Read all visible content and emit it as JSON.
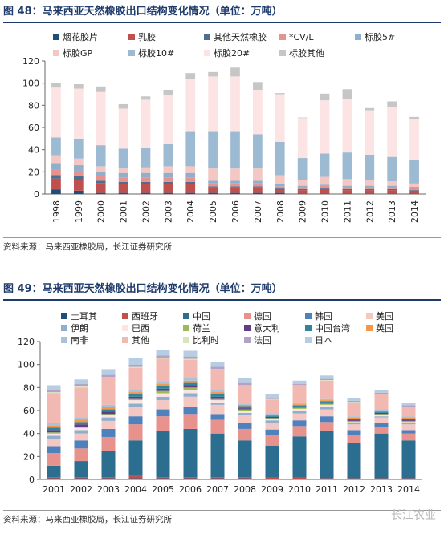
{
  "figures": [
    {
      "title": "图 48：马来西亚天然橡胶出口结构变化情况（单位：万吨）",
      "source": "资料来源：马来西亚橡胶局，长江证券研究所"
    },
    {
      "title": "图 49：马来西亚天然橡胶出口结构变化情况（单位：万吨）",
      "source": "资料来源：马来西亚橡胶局，长江证券研究所"
    }
  ],
  "watermark": "长江农业",
  "chart_data": [
    {
      "type": "bar",
      "stacked": true,
      "categories": [
        "1998",
        "1999",
        "2000",
        "2001",
        "2002",
        "2003",
        "2004",
        "2005",
        "2006",
        "2007",
        "2008",
        "2009",
        "2010",
        "2011",
        "2012",
        "2013",
        "2014"
      ],
      "ylim": [
        0,
        120
      ],
      "yticks": [
        0,
        20,
        40,
        60,
        80,
        100,
        120
      ],
      "grid": false,
      "legend": "top",
      "series": [
        {
          "name": "烟花胶片",
          "color": "#1f4e79",
          "values": [
            4,
            3,
            1,
            1,
            1,
            1,
            1,
            1,
            1,
            1,
            1,
            0.5,
            0.5,
            0.5,
            0.5,
            0.5,
            0.5
          ]
        },
        {
          "name": "乳胶",
          "color": "#c0504d",
          "values": [
            10,
            10,
            9,
            8,
            8,
            8,
            8,
            5,
            5,
            5,
            3,
            3,
            4,
            3,
            3,
            3,
            2
          ]
        },
        {
          "name": "其他天然橡胶",
          "color": "#4f6d8f",
          "values": [
            3,
            3,
            2,
            2,
            2,
            2,
            2,
            1,
            1,
            1,
            1,
            1,
            1,
            1,
            1,
            1,
            1
          ]
        },
        {
          "name": "*CV/L",
          "color": "#e8928e",
          "values": [
            5,
            5,
            4,
            4,
            4,
            4,
            4,
            3,
            3,
            3,
            2,
            2,
            2,
            2,
            2,
            2,
            2
          ]
        },
        {
          "name": "标胶5#",
          "color": "#8fb0cc",
          "values": [
            6,
            5,
            4,
            4,
            4,
            4,
            4,
            2,
            2,
            2,
            2,
            1,
            1,
            1,
            1,
            1,
            1
          ]
        },
        {
          "name": "标胶GP",
          "color": "#f4c7c3",
          "values": [
            7,
            6,
            5,
            4,
            5,
            6,
            6,
            11,
            11,
            11,
            8,
            5,
            7,
            6,
            5,
            4,
            3
          ]
        },
        {
          "name": "标胶10#",
          "color": "#9dbad3",
          "values": [
            16,
            18,
            19,
            18,
            18,
            20,
            31,
            33,
            33,
            31,
            30,
            20,
            21,
            24,
            23,
            22,
            21
          ]
        },
        {
          "name": "标胶20#",
          "color": "#fce4e4",
          "values": [
            45,
            45,
            48,
            36,
            43,
            44,
            48,
            50,
            50,
            40,
            43,
            36,
            48,
            48,
            40,
            45,
            37
          ]
        },
        {
          "name": "标胶其他",
          "color": "#c6c6c6",
          "values": [
            4,
            4,
            5,
            4,
            3,
            5,
            5,
            4,
            8,
            7,
            1,
            0.5,
            6,
            9,
            2,
            5,
            2
          ]
        }
      ]
    },
    {
      "type": "bar",
      "stacked": true,
      "categories": [
        "2001",
        "2002",
        "2003",
        "2004",
        "2005",
        "2006",
        "2007",
        "2008",
        "2009",
        "2010",
        "2011",
        "2012",
        "2013",
        "2014"
      ],
      "ylim": [
        0,
        120
      ],
      "yticks": [
        0,
        20,
        40,
        60,
        80,
        100,
        120
      ],
      "grid": false,
      "legend": "top",
      "series": [
        {
          "name": "土耳其",
          "color": "#1f4e79",
          "values": [
            1,
            1,
            1,
            1,
            1,
            1,
            1,
            1,
            0.5,
            0.5,
            0.5,
            0.5,
            0.5,
            0.5
          ]
        },
        {
          "name": "西班牙",
          "color": "#c0504d",
          "values": [
            1,
            1,
            1,
            3,
            1,
            1,
            1,
            1,
            1,
            1,
            0.5,
            0.5,
            0.5,
            0.5
          ]
        },
        {
          "name": "中国",
          "color": "#2c6e8f",
          "values": [
            10,
            14,
            23,
            30,
            40,
            42,
            38,
            32,
            28,
            36,
            41,
            31,
            39,
            33
          ]
        },
        {
          "name": "德国",
          "color": "#e8928e",
          "values": [
            11,
            11,
            12,
            14,
            13,
            13,
            12,
            10,
            9,
            9,
            8,
            7,
            6,
            6
          ]
        },
        {
          "name": "韩国",
          "color": "#4f81bd",
          "values": [
            6,
            7,
            7,
            7,
            6,
            6,
            5,
            5,
            5,
            5,
            5,
            4,
            3,
            3
          ]
        },
        {
          "name": "美国",
          "color": "#f4c7c3",
          "values": [
            6,
            6,
            7,
            8,
            8,
            9,
            8,
            7,
            6,
            6,
            6,
            5,
            5,
            5
          ]
        },
        {
          "name": "伊朗",
          "color": "#8fb0cc",
          "values": [
            3,
            3,
            3,
            3,
            3,
            3,
            2,
            2,
            2,
            2,
            2,
            1,
            1,
            1
          ]
        },
        {
          "name": "巴西",
          "color": "#fce4e4",
          "values": [
            2,
            2,
            2,
            3,
            3,
            3,
            2,
            2,
            1,
            2,
            2,
            1,
            1,
            1
          ]
        },
        {
          "name": "荷兰",
          "color": "#9bbb59",
          "values": [
            1,
            1,
            1,
            1,
            2,
            2,
            1,
            1,
            1,
            1,
            1,
            1,
            1,
            1
          ]
        },
        {
          "name": "意大利",
          "color": "#5e3f86",
          "values": [
            2,
            2,
            2,
            2,
            2,
            2,
            2,
            1,
            1,
            1,
            1,
            1,
            1,
            1
          ]
        },
        {
          "name": "中国台湾",
          "color": "#31849b",
          "values": [
            2,
            2,
            2,
            2,
            2,
            2,
            2,
            2,
            1,
            1,
            1,
            1,
            1,
            1
          ]
        },
        {
          "name": "英国",
          "color": "#f79646",
          "values": [
            2,
            2,
            2,
            2,
            2,
            2,
            2,
            1,
            1,
            1,
            1,
            1,
            1,
            1
          ]
        },
        {
          "name": "南非",
          "color": "#a9c2da",
          "values": [
            2,
            2,
            2,
            2,
            2,
            2,
            2,
            1,
            1,
            1,
            1,
            1,
            1,
            1
          ]
        },
        {
          "name": "其他",
          "color": "#f2b8b2",
          "values": [
            26,
            26,
            23,
            19,
            20,
            16,
            17,
            15,
            12,
            15,
            16,
            12,
            13,
            8
          ]
        },
        {
          "name": "比利时",
          "color": "#d7e4bd",
          "values": [
            1,
            1,
            1,
            1,
            1,
            1,
            1,
            1,
            0.5,
            0.5,
            0.5,
            0.5,
            0.5,
            0.5
          ]
        },
        {
          "name": "法国",
          "color": "#b3a2c7",
          "values": [
            2,
            2,
            2,
            2,
            2,
            2,
            2,
            2,
            1,
            1,
            1,
            1,
            1,
            1
          ]
        },
        {
          "name": "日本",
          "color": "#b7cde3",
          "values": [
            4,
            4,
            5,
            6,
            5,
            5,
            4,
            4,
            3,
            3,
            3,
            2,
            2,
            2
          ]
        }
      ]
    }
  ]
}
